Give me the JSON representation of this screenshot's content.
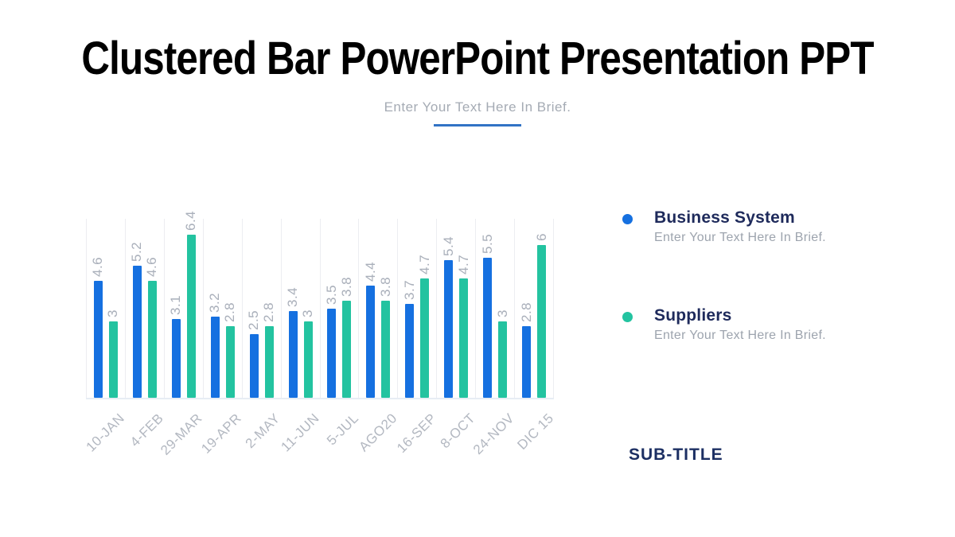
{
  "slide": {
    "title": "Clustered Bar PowerPoint Presentation PPT",
    "subtitle": "Enter Your Text Here In Brief.",
    "sub_title_label": "SUB-TITLE",
    "background_color": "#FFFFFF",
    "accent_underline_color": "#3273C5"
  },
  "legend": {
    "items": [
      {
        "name": "Business System",
        "description": "Enter Your Text Here In Brief.",
        "color": "#1570E0"
      },
      {
        "name": "Suppliers",
        "description": "Enter Your Text Here In Brief.",
        "color": "#23C3A0"
      }
    ]
  },
  "chart_data": {
    "type": "bar",
    "categories": [
      "10-JAN",
      "4-FEB",
      "29-MAR",
      "19-APR",
      "2-MAY",
      "11-JUN",
      "5-JUL",
      "AGO20",
      "16-SEP",
      "8-OCT",
      "24-NOV",
      "DIC 15"
    ],
    "series": [
      {
        "name": "Business System",
        "color": "#1570E0",
        "values": [
          4.6,
          5.2,
          3.1,
          3.2,
          2.5,
          3.4,
          3.5,
          4.4,
          3.7,
          5.4,
          5.5,
          2.8
        ]
      },
      {
        "name": "Suppliers",
        "color": "#23C3A0",
        "values": [
          3,
          4.6,
          6.4,
          2.8,
          2.8,
          3,
          3.8,
          3.8,
          4.7,
          4.7,
          3,
          6
        ]
      }
    ],
    "title": "",
    "xlabel": "",
    "ylabel": "",
    "ylim": [
      0,
      7
    ],
    "value_labels": true,
    "value_label_rotation": -90,
    "value_label_color": "#A9AFBA",
    "xtick_rotation": -45,
    "xtick_color": "#B3B8C1",
    "gridline_color": "#ECEDF1",
    "grid": "vertical",
    "legend_position": "right"
  }
}
